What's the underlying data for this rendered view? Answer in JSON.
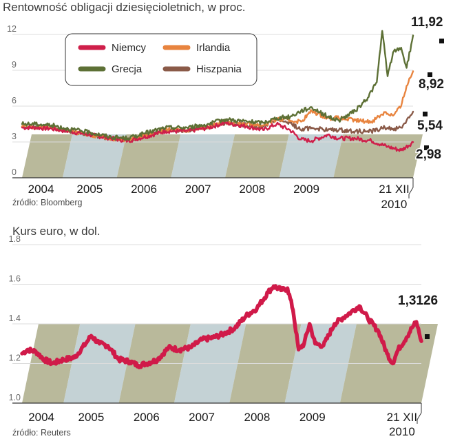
{
  "colors": {
    "niemcy": "#cf1f4a",
    "irlandia": "#e8843f",
    "grecja": "#5d7035",
    "hiszpania": "#8a5a48",
    "kurs": "#d01a49",
    "bandDark": "#b9b99b",
    "bandLight": "#c4d2d5"
  },
  "chart_data": [
    {
      "type": "line",
      "title": "Rentowność  obligacji dziesięcioletnich, w proc.",
      "source": "źródło: Bloomberg",
      "ylim": [
        0,
        12
      ],
      "yticks": [
        "0",
        "3",
        "6",
        "9",
        "12"
      ],
      "xticks": [
        "2004",
        "2005",
        "2006",
        "2007",
        "2008",
        "2009",
        "21 XII",
        "2010"
      ],
      "legend_position": "top-left",
      "series": [
        {
          "name": "Niemcy",
          "color_key": "niemcy",
          "end_label": "2,98",
          "points": [
            [
              2003.75,
              4.2
            ],
            [
              2004.0,
              4.2
            ],
            [
              2004.3,
              4.1
            ],
            [
              2004.6,
              3.9
            ],
            [
              2005.0,
              3.6
            ],
            [
              2005.4,
              3.3
            ],
            [
              2005.7,
              3.1
            ],
            [
              2006.0,
              3.4
            ],
            [
              2006.4,
              3.9
            ],
            [
              2006.8,
              3.9
            ],
            [
              2007.2,
              4.2
            ],
            [
              2007.5,
              4.6
            ],
            [
              2007.9,
              4.3
            ],
            [
              2008.2,
              4.0
            ],
            [
              2008.45,
              4.5
            ],
            [
              2008.7,
              4.0
            ],
            [
              2008.9,
              3.2
            ],
            [
              2009.1,
              3.1
            ],
            [
              2009.4,
              3.6
            ],
            [
              2009.6,
              3.3
            ],
            [
              2009.9,
              3.3
            ],
            [
              2010.2,
              3.1
            ],
            [
              2010.5,
              2.6
            ],
            [
              2010.75,
              2.3
            ],
            [
              2010.97,
              2.98
            ]
          ]
        },
        {
          "name": "Irlandia",
          "color_key": "irlandia",
          "end_label": "8,92",
          "points": [
            [
              2003.75,
              4.3
            ],
            [
              2004.0,
              4.2
            ],
            [
              2004.3,
              4.2
            ],
            [
              2004.6,
              3.9
            ],
            [
              2005.0,
              3.6
            ],
            [
              2005.4,
              3.3
            ],
            [
              2005.7,
              3.2
            ],
            [
              2006.0,
              3.5
            ],
            [
              2006.4,
              4.0
            ],
            [
              2006.8,
              4.0
            ],
            [
              2007.2,
              4.3
            ],
            [
              2007.5,
              4.7
            ],
            [
              2007.9,
              4.5
            ],
            [
              2008.2,
              4.4
            ],
            [
              2008.45,
              4.9
            ],
            [
              2008.7,
              4.8
            ],
            [
              2008.9,
              4.7
            ],
            [
              2009.1,
              5.6
            ],
            [
              2009.4,
              5.0
            ],
            [
              2009.6,
              5.0
            ],
            [
              2009.9,
              4.8
            ],
            [
              2010.2,
              4.7
            ],
            [
              2010.45,
              5.5
            ],
            [
              2010.6,
              5.2
            ],
            [
              2010.75,
              6.0
            ],
            [
              2010.85,
              7.7
            ],
            [
              2010.97,
              8.92
            ]
          ]
        },
        {
          "name": "Grecja",
          "color_key": "grecja",
          "end_label": "11,92",
          "points": [
            [
              2003.75,
              4.5
            ],
            [
              2004.0,
              4.5
            ],
            [
              2004.3,
              4.4
            ],
            [
              2004.6,
              4.1
            ],
            [
              2005.0,
              3.8
            ],
            [
              2005.4,
              3.4
            ],
            [
              2005.7,
              3.3
            ],
            [
              2006.0,
              3.7
            ],
            [
              2006.4,
              4.2
            ],
            [
              2006.8,
              4.2
            ],
            [
              2007.2,
              4.5
            ],
            [
              2007.5,
              4.9
            ],
            [
              2007.9,
              4.7
            ],
            [
              2008.2,
              4.6
            ],
            [
              2008.45,
              5.0
            ],
            [
              2008.7,
              5.1
            ],
            [
              2008.9,
              5.6
            ],
            [
              2009.1,
              5.9
            ],
            [
              2009.4,
              5.1
            ],
            [
              2009.6,
              4.8
            ],
            [
              2009.9,
              5.6
            ],
            [
              2010.1,
              6.5
            ],
            [
              2010.3,
              8.0
            ],
            [
              2010.4,
              12.3
            ],
            [
              2010.5,
              8.5
            ],
            [
              2010.6,
              10.5
            ],
            [
              2010.75,
              10.9
            ],
            [
              2010.85,
              9.2
            ],
            [
              2010.97,
              11.92
            ]
          ]
        },
        {
          "name": "Hiszpania",
          "color_key": "hiszpania",
          "end_label": "5,54",
          "points": [
            [
              2003.75,
              4.3
            ],
            [
              2004.0,
              4.3
            ],
            [
              2004.3,
              4.2
            ],
            [
              2004.6,
              3.9
            ],
            [
              2005.0,
              3.6
            ],
            [
              2005.4,
              3.3
            ],
            [
              2005.7,
              3.2
            ],
            [
              2006.0,
              3.5
            ],
            [
              2006.4,
              4.0
            ],
            [
              2006.8,
              4.0
            ],
            [
              2007.2,
              4.3
            ],
            [
              2007.5,
              4.6
            ],
            [
              2007.9,
              4.4
            ],
            [
              2008.2,
              4.3
            ],
            [
              2008.45,
              4.9
            ],
            [
              2008.7,
              4.6
            ],
            [
              2008.9,
              4.0
            ],
            [
              2009.1,
              4.2
            ],
            [
              2009.4,
              4.0
            ],
            [
              2009.6,
              4.0
            ],
            [
              2009.9,
              3.9
            ],
            [
              2010.2,
              3.9
            ],
            [
              2010.45,
              4.2
            ],
            [
              2010.6,
              4.1
            ],
            [
              2010.75,
              4.2
            ],
            [
              2010.85,
              4.8
            ],
            [
              2010.97,
              5.54
            ]
          ]
        }
      ]
    },
    {
      "type": "line",
      "title": "Kurs euro, w dol.",
      "source": "źródło: Reuters",
      "ylim": [
        1.0,
        1.8
      ],
      "yticks": [
        "1.0",
        "1.2",
        "1.4",
        "1.6",
        "1.8"
      ],
      "xticks": [
        "2004",
        "2005",
        "2006",
        "2007",
        "2008",
        "2009",
        "21 XII",
        "2010"
      ],
      "series": [
        {
          "name": "",
          "color_key": "kurs",
          "end_label": "1,3126",
          "points": [
            [
              2003.75,
              1.25
            ],
            [
              2003.85,
              1.27
            ],
            [
              2004.0,
              1.26
            ],
            [
              2004.15,
              1.22
            ],
            [
              2004.3,
              1.2
            ],
            [
              2004.5,
              1.22
            ],
            [
              2004.7,
              1.23
            ],
            [
              2004.9,
              1.3
            ],
            [
              2005.0,
              1.34
            ],
            [
              2005.15,
              1.3
            ],
            [
              2005.3,
              1.29
            ],
            [
              2005.5,
              1.22
            ],
            [
              2005.7,
              1.21
            ],
            [
              2005.85,
              1.19
            ],
            [
              2006.0,
              1.2
            ],
            [
              2006.2,
              1.22
            ],
            [
              2006.4,
              1.28
            ],
            [
              2006.6,
              1.27
            ],
            [
              2006.8,
              1.28
            ],
            [
              2007.0,
              1.32
            ],
            [
              2007.2,
              1.33
            ],
            [
              2007.4,
              1.35
            ],
            [
              2007.6,
              1.38
            ],
            [
              2007.8,
              1.44
            ],
            [
              2008.0,
              1.48
            ],
            [
              2008.2,
              1.56
            ],
            [
              2008.3,
              1.59
            ],
            [
              2008.45,
              1.57
            ],
            [
              2008.55,
              1.58
            ],
            [
              2008.65,
              1.47
            ],
            [
              2008.75,
              1.27
            ],
            [
              2008.85,
              1.3
            ],
            [
              2008.95,
              1.4
            ],
            [
              2009.05,
              1.3
            ],
            [
              2009.2,
              1.29
            ],
            [
              2009.4,
              1.4
            ],
            [
              2009.55,
              1.43
            ],
            [
              2009.7,
              1.46
            ],
            [
              2009.85,
              1.49
            ],
            [
              2010.0,
              1.43
            ],
            [
              2010.2,
              1.36
            ],
            [
              2010.35,
              1.25
            ],
            [
              2010.45,
              1.2
            ],
            [
              2010.55,
              1.27
            ],
            [
              2010.7,
              1.33
            ],
            [
              2010.8,
              1.38
            ],
            [
              2010.88,
              1.41
            ],
            [
              2010.97,
              1.3126
            ]
          ]
        }
      ]
    }
  ]
}
